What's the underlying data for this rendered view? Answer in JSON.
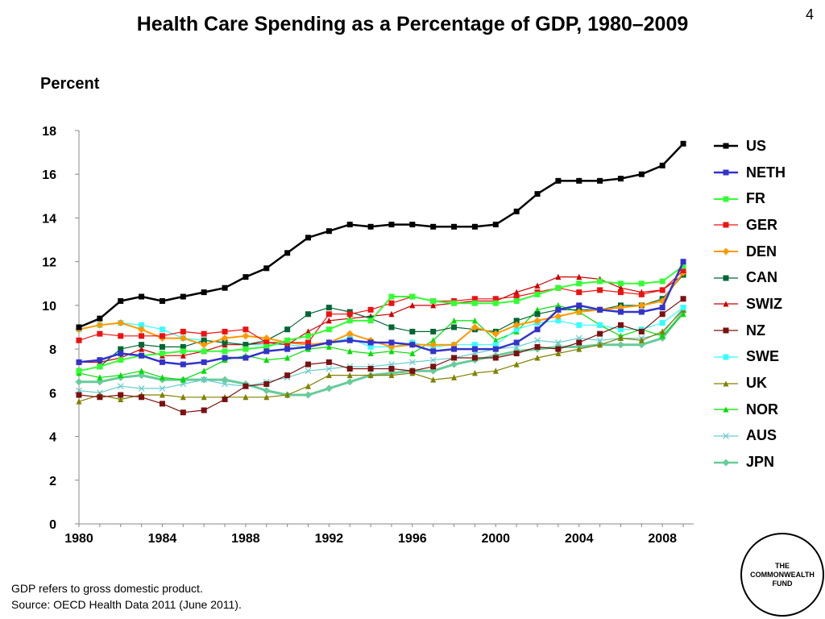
{
  "slide_number": "4",
  "footer": {
    "note": "GDP refers to gross domestic product.",
    "source": "Source: OECD Health Data 2011 (June 2011)."
  },
  "logo": {
    "line1": "THE",
    "line2": "COMMONWEALTH",
    "line3": "FUND"
  },
  "chart_data": {
    "type": "line",
    "title": "Health Care Spending as a Percentage of GDP, 1980–2009",
    "ylabel": "Percent",
    "xlabel": "",
    "x": [
      1980,
      1981,
      1982,
      1983,
      1984,
      1985,
      1986,
      1987,
      1988,
      1989,
      1990,
      1991,
      1992,
      1993,
      1994,
      1995,
      1996,
      1997,
      1998,
      1999,
      2000,
      2001,
      2002,
      2003,
      2004,
      2005,
      2006,
      2007,
      2008,
      2009
    ],
    "xlim": [
      1980,
      2009.5
    ],
    "ylim": [
      0,
      18
    ],
    "xticks": [
      "1980",
      "1984",
      "1988",
      "1992",
      "1996",
      "2000",
      "2004",
      "2008"
    ],
    "xtick_values": [
      1980,
      1984,
      1988,
      1992,
      1996,
      2000,
      2004,
      2008
    ],
    "yticks": [
      "0",
      "2",
      "4",
      "6",
      "8",
      "10",
      "12",
      "14",
      "16",
      "18"
    ],
    "ytick_values": [
      0,
      2,
      4,
      6,
      8,
      10,
      12,
      14,
      16,
      18
    ],
    "grid": false,
    "legend": "right",
    "series": [
      {
        "name": "US",
        "color": "#000000",
        "marker": "square",
        "width": 2.5,
        "values": [
          9.0,
          9.4,
          10.2,
          10.4,
          10.2,
          10.4,
          10.6,
          10.8,
          11.3,
          11.7,
          12.4,
          13.1,
          13.4,
          13.7,
          13.6,
          13.7,
          13.7,
          13.6,
          13.6,
          13.6,
          13.7,
          14.3,
          15.1,
          15.7,
          15.7,
          15.7,
          15.8,
          16.0,
          16.4,
          17.4
        ]
      },
      {
        "name": "NETH",
        "color": "#3333cc",
        "marker": "square",
        "width": 2.5,
        "values": [
          7.4,
          7.5,
          7.8,
          7.7,
          7.4,
          7.3,
          7.4,
          7.6,
          7.6,
          7.9,
          8.0,
          8.1,
          8.3,
          8.4,
          8.3,
          8.3,
          8.2,
          7.9,
          8.0,
          8.0,
          8.0,
          8.3,
          8.9,
          9.8,
          10.0,
          9.8,
          9.7,
          9.7,
          9.9,
          12.0
        ]
      },
      {
        "name": "FR",
        "color": "#33ff33",
        "marker": "square",
        "width": 2,
        "values": [
          7.0,
          7.2,
          7.5,
          7.7,
          7.8,
          7.9,
          7.9,
          7.9,
          8.0,
          8.1,
          8.4,
          8.6,
          8.9,
          9.3,
          9.3,
          10.4,
          10.4,
          10.2,
          10.1,
          10.1,
          10.1,
          10.2,
          10.5,
          10.8,
          11.0,
          11.1,
          11.0,
          11.0,
          11.1,
          11.8
        ]
      },
      {
        "name": "GER",
        "color": "#ee1111",
        "marker": "square",
        "width": 1.2,
        "values": [
          8.4,
          8.7,
          8.6,
          8.6,
          8.6,
          8.8,
          8.7,
          8.8,
          8.9,
          8.3,
          8.3,
          8.3,
          9.6,
          9.6,
          9.8,
          10.1,
          10.4,
          10.2,
          10.2,
          10.3,
          10.3,
          10.4,
          10.6,
          10.8,
          10.6,
          10.7,
          10.6,
          10.5,
          10.7,
          11.6
        ]
      },
      {
        "name": "DEN",
        "color": "#ff9900",
        "marker": "diamond",
        "width": 2,
        "values": [
          8.9,
          9.1,
          9.2,
          8.9,
          8.5,
          8.5,
          8.2,
          8.5,
          8.6,
          8.5,
          8.3,
          8.2,
          8.3,
          8.7,
          8.4,
          8.1,
          8.2,
          8.2,
          8.2,
          9.0,
          8.7,
          9.1,
          9.3,
          9.5,
          9.7,
          9.8,
          9.9,
          10.0,
          10.2,
          11.5
        ]
      },
      {
        "name": "CAN",
        "color": "#006633",
        "marker": "square",
        "width": 1.2,
        "values": [
          7.0,
          7.2,
          8.0,
          8.2,
          8.1,
          8.1,
          8.4,
          8.3,
          8.2,
          8.4,
          8.9,
          9.6,
          9.9,
          9.7,
          9.4,
          9.0,
          8.8,
          8.8,
          9.0,
          8.9,
          8.8,
          9.3,
          9.6,
          9.8,
          9.8,
          9.8,
          10.0,
          10.0,
          10.3,
          11.4
        ]
      },
      {
        "name": "SWIZ",
        "color": "#cc0000",
        "marker": "triangle",
        "width": 1.2,
        "values": [
          7.4,
          7.4,
          7.6,
          8.0,
          7.7,
          7.7,
          7.9,
          8.2,
          8.2,
          8.3,
          8.2,
          8.8,
          9.3,
          9.4,
          9.5,
          9.6,
          10.0,
          10.0,
          10.1,
          10.2,
          10.2,
          10.6,
          10.9,
          11.3,
          11.3,
          11.2,
          10.8,
          10.6,
          10.7,
          11.4
        ]
      },
      {
        "name": "NZ",
        "color": "#7b1010",
        "marker": "square",
        "width": 1.2,
        "values": [
          5.9,
          5.8,
          5.9,
          5.8,
          5.5,
          5.1,
          5.2,
          5.7,
          6.3,
          6.4,
          6.8,
          7.3,
          7.4,
          7.1,
          7.1,
          7.1,
          7.0,
          7.2,
          7.6,
          7.6,
          7.6,
          7.8,
          8.1,
          8.0,
          8.3,
          8.7,
          9.1,
          8.8,
          9.6,
          10.3
        ]
      },
      {
        "name": "SWE",
        "color": "#33ffff",
        "marker": "square",
        "width": 1.2,
        "values": [
          8.9,
          9.1,
          9.2,
          9.1,
          8.9,
          8.5,
          8.4,
          8.3,
          8.2,
          8.2,
          8.2,
          8.1,
          8.3,
          8.5,
          8.1,
          8.1,
          8.3,
          8.1,
          8.2,
          8.2,
          8.2,
          8.9,
          9.2,
          9.3,
          9.1,
          9.1,
          8.9,
          8.9,
          9.2,
          9.9
        ]
      },
      {
        "name": "UK",
        "color": "#808000",
        "marker": "triangle",
        "width": 1.2,
        "values": [
          5.6,
          5.9,
          5.7,
          5.9,
          5.9,
          5.8,
          5.8,
          5.8,
          5.8,
          5.8,
          5.9,
          6.3,
          6.8,
          6.8,
          6.8,
          6.8,
          6.9,
          6.6,
          6.7,
          6.9,
          7.0,
          7.3,
          7.6,
          7.8,
          8.0,
          8.2,
          8.5,
          8.4,
          8.8,
          9.8
        ]
      },
      {
        "name": "NOR",
        "color": "#00dd00",
        "marker": "triangle",
        "width": 1.2,
        "values": [
          6.9,
          6.7,
          6.8,
          7.0,
          6.7,
          6.6,
          7.0,
          7.5,
          7.7,
          7.5,
          7.6,
          8.0,
          8.1,
          7.9,
          7.8,
          7.9,
          7.8,
          8.4,
          9.3,
          9.3,
          8.4,
          8.8,
          9.8,
          10.0,
          9.7,
          9.1,
          8.6,
          8.9,
          8.6,
          9.6
        ]
      },
      {
        "name": "AUS",
        "color": "#66cccc",
        "marker": "x",
        "width": 1.2,
        "values": [
          6.1,
          6.0,
          6.3,
          6.2,
          6.2,
          6.4,
          6.6,
          6.4,
          6.3,
          6.5,
          6.7,
          7.0,
          7.1,
          7.2,
          7.2,
          7.3,
          7.4,
          7.5,
          7.6,
          7.8,
          8.0,
          8.1,
          8.4,
          8.3,
          8.5,
          8.4,
          8.5,
          8.5,
          8.7,
          9.9
        ]
      },
      {
        "name": "JPN",
        "color": "#66cc99",
        "marker": "diamond",
        "width": 3,
        "values": [
          6.5,
          6.5,
          6.7,
          6.8,
          6.6,
          6.6,
          6.6,
          6.6,
          6.4,
          6.1,
          5.9,
          5.9,
          6.2,
          6.5,
          6.8,
          6.9,
          7.0,
          7.0,
          7.3,
          7.5,
          7.7,
          7.9,
          8.0,
          8.1,
          8.1,
          8.2,
          8.2,
          8.2,
          8.5,
          9.7
        ]
      }
    ]
  }
}
